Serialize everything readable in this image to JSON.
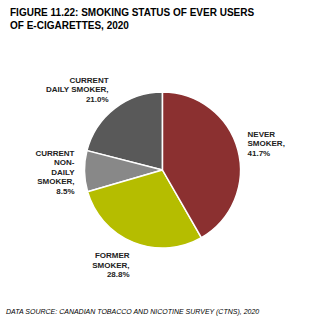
{
  "chart_data": {
    "type": "pie",
    "title": "FIGURE 11.22: SMOKING STATUS OF EVER USERS\nOF E-CIGARETTES, 2020",
    "categories": [
      "CURRENT\nDAILY SMOKER,\n21.0%",
      "CURRENT\nNON-\nDAILY\nSMOKER,\n8.5%",
      "FORMER\nSMOKER,\n28.8%",
      "NEVER\nSMOKER,\n41.7%"
    ],
    "values": [
      21.0,
      8.5,
      28.8,
      41.7
    ],
    "colors": [
      "#595959",
      "#888888",
      "#b5bd00",
      "#8b3030"
    ],
    "annotations": [
      "DATA SOURCE: CANADIAN TOBACCO AND NICOTINE SURVEY (CTNS), 2020"
    ]
  }
}
